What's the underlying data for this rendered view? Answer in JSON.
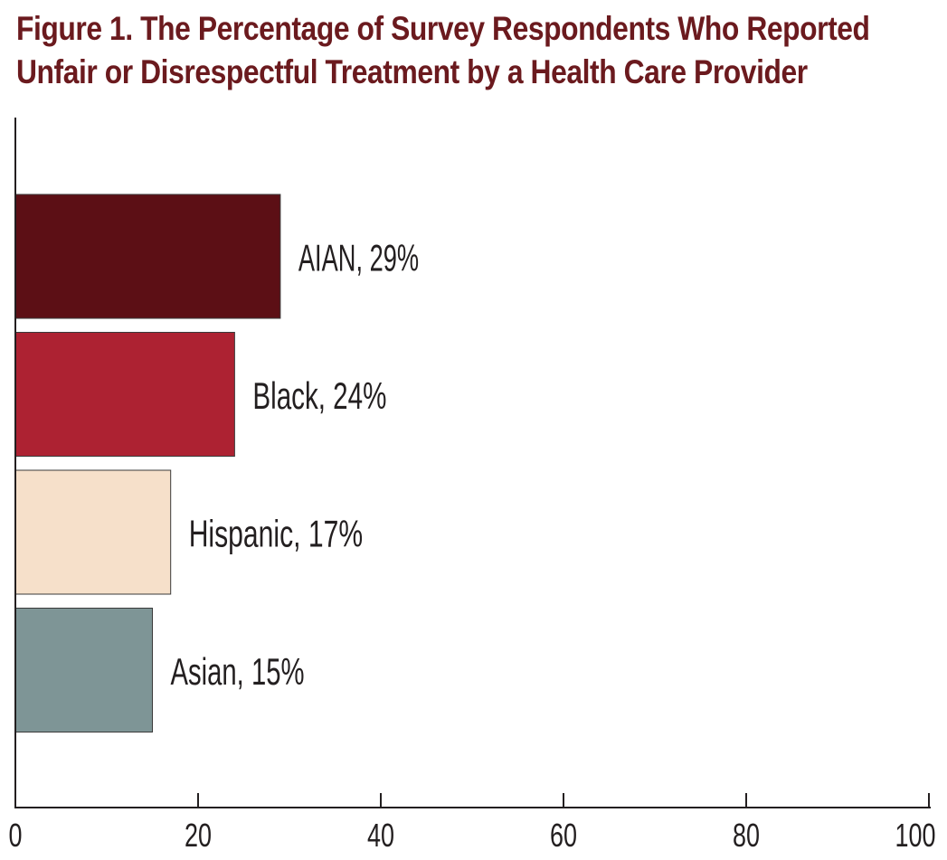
{
  "chart_data": {
    "type": "bar",
    "orientation": "horizontal",
    "title_lines": [
      "Figure 1. The Percentage of Survey Respondents Who Reported",
      "Unfair or Disrespectful Treatment by a Health Care Provider"
    ],
    "categories": [
      "AIAN",
      "Black",
      "Hispanic",
      "Asian"
    ],
    "values": [
      29,
      24,
      17,
      15
    ],
    "labels": [
      "AIAN, 29%",
      "Black, 24%",
      "Hispanic, 17%",
      "Asian, 15%"
    ],
    "colors": [
      "#5c0f15",
      "#ad2232",
      "#f6e0ca",
      "#7e9596"
    ],
    "xlim": [
      0,
      100
    ],
    "xticks": [
      0,
      20,
      40,
      60,
      80,
      100
    ],
    "xtick_labels": [
      "0",
      "20",
      "40",
      "60",
      "80",
      "100"
    ],
    "xlabel": "",
    "ylabel": "",
    "grid": false,
    "legend": "none"
  }
}
